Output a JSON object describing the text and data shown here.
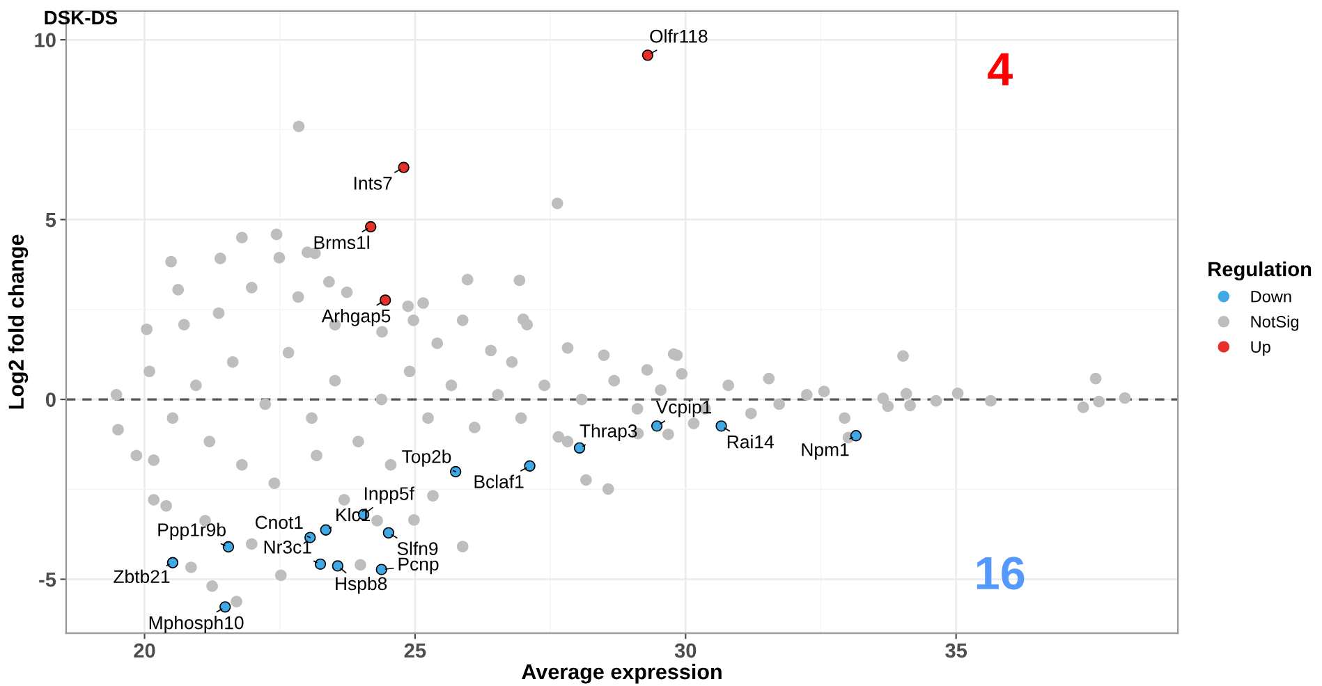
{
  "chart_data": {
    "type": "scatter",
    "title": "DSK-DS",
    "xlabel": "Average expression",
    "ylabel": "Log2 fold change",
    "legend_title": "Regulation",
    "legend": "right",
    "grid": true,
    "marker": "circle",
    "xlim": [
      18.55,
      39.1
    ],
    "ylim": [
      -6.5,
      10.8
    ],
    "xticks": [
      20,
      25,
      30,
      35
    ],
    "yticks": [
      -5,
      0,
      5,
      10
    ],
    "ref_lines": [
      {
        "axis": "y",
        "value": 0,
        "label": null,
        "color": "#555555",
        "line_style": "dashed"
      }
    ],
    "annotations": [
      "4",
      "16"
    ],
    "series": [
      {
        "name": "Down",
        "color": "#3fa9e6",
        "x": [
          28.04,
          25.75,
          27.12,
          24.05,
          23.35,
          23.06,
          24.51,
          21.55,
          20.52,
          23.25,
          23.57,
          24.38,
          21.49,
          29.47,
          30.66,
          33.15
        ],
        "values": [
          -1.35,
          -2.01,
          -1.85,
          -3.2,
          -3.63,
          -3.84,
          -3.71,
          -4.1,
          -4.54,
          -4.58,
          -4.63,
          -4.73,
          -5.77,
          -0.74,
          -0.74,
          -1.01
        ],
        "value_labels": [
          "Thrap3",
          "Top2b",
          "Bclaf1",
          "Inpp5f",
          "Klc1",
          "Cnot1",
          "Slfn9",
          "Ppp1r9b",
          "Zbtb21",
          "Nr3c1",
          "Hspb8",
          "Pcnp",
          "Mphosph10",
          "Vcpip1",
          "Rai14",
          "Npm1"
        ]
      },
      {
        "name": "NotSig",
        "color": "#bebebe",
        "x": [
          22.85,
          27.63,
          21.8,
          22.44,
          20.49,
          21.4,
          23.01,
          23.15,
          25.97,
          26.93,
          25.15,
          20.62,
          23.41,
          22.49,
          27.0,
          25.88,
          24.87,
          23.74,
          19.48,
          19.51,
          19.85,
          20.17,
          20.4,
          20.86,
          21.25,
          21.7,
          22.52,
          23.99,
          25.88,
          25.33,
          24.98,
          28.16,
          28.57,
          27.82,
          21.12,
          21.98,
          24.3,
          23.69,
          20.17,
          20.04,
          20.73,
          21.37,
          21.98,
          22.84,
          23.52,
          24.39,
          24.97,
          25.41,
          26.4,
          27.82,
          28.49,
          29.84,
          27.07,
          20.09,
          20.52,
          20.95,
          21.2,
          21.63,
          21.8,
          22.23,
          22.4,
          22.66,
          23.09,
          23.18,
          23.52,
          23.95,
          24.38,
          24.55,
          24.9,
          25.24,
          25.67,
          26.1,
          26.53,
          26.79,
          26.96,
          27.39,
          27.65,
          28.08,
          28.68,
          29.11,
          29.54,
          29.78,
          29.29,
          29.93,
          30.36,
          30.79,
          31.54,
          31.21,
          31.73,
          32.24,
          32.56,
          32.94,
          33.01,
          33.65,
          34.02,
          34.08,
          33.74,
          34.15,
          34.63,
          35.03,
          35.64,
          37.35,
          37.58,
          37.64,
          38.12,
          30.15,
          29.68,
          29.12
        ],
        "values": [
          7.59,
          5.45,
          4.5,
          4.59,
          3.83,
          3.92,
          4.09,
          4.06,
          3.33,
          3.31,
          2.68,
          3.05,
          3.27,
          3.94,
          2.23,
          2.2,
          2.59,
          2.98,
          0.13,
          -0.84,
          -1.56,
          -2.79,
          -2.96,
          -4.67,
          -5.19,
          -5.62,
          -4.89,
          -4.6,
          -4.09,
          -2.68,
          -3.35,
          -2.24,
          -2.49,
          -1.17,
          -3.37,
          -4.02,
          -3.37,
          -2.79,
          -1.69,
          1.95,
          2.08,
          2.4,
          3.11,
          2.85,
          2.08,
          1.88,
          2.2,
          1.56,
          1.36,
          1.43,
          1.23,
          1.23,
          2.08,
          0.78,
          -0.52,
          0.39,
          -1.17,
          1.04,
          -1.82,
          -0.13,
          -2.33,
          1.3,
          -0.52,
          -1.56,
          0.52,
          -1.17,
          0.0,
          -1.82,
          0.78,
          -0.52,
          0.39,
          -0.78,
          0.13,
          1.04,
          -0.52,
          0.39,
          -1.04,
          0.0,
          0.52,
          -0.26,
          0.26,
          1.26,
          0.82,
          0.71,
          -0.26,
          0.39,
          0.58,
          -0.39,
          -0.13,
          0.13,
          0.22,
          -0.52,
          -1.06,
          0.03,
          1.21,
          0.16,
          -0.19,
          -0.17,
          -0.04,
          0.17,
          -0.04,
          -0.22,
          0.58,
          -0.06,
          0.04,
          -0.67,
          -0.97,
          -0.95
        ]
      },
      {
        "name": "Up",
        "color": "#e8302a",
        "x": [
          29.3,
          24.79,
          24.18,
          24.45
        ],
        "values": [
          9.57,
          6.45,
          4.8,
          2.76
        ],
        "value_labels": [
          "Olfr118",
          "Ints7",
          "Brms1l",
          "Arhgap5"
        ]
      }
    ]
  }
}
